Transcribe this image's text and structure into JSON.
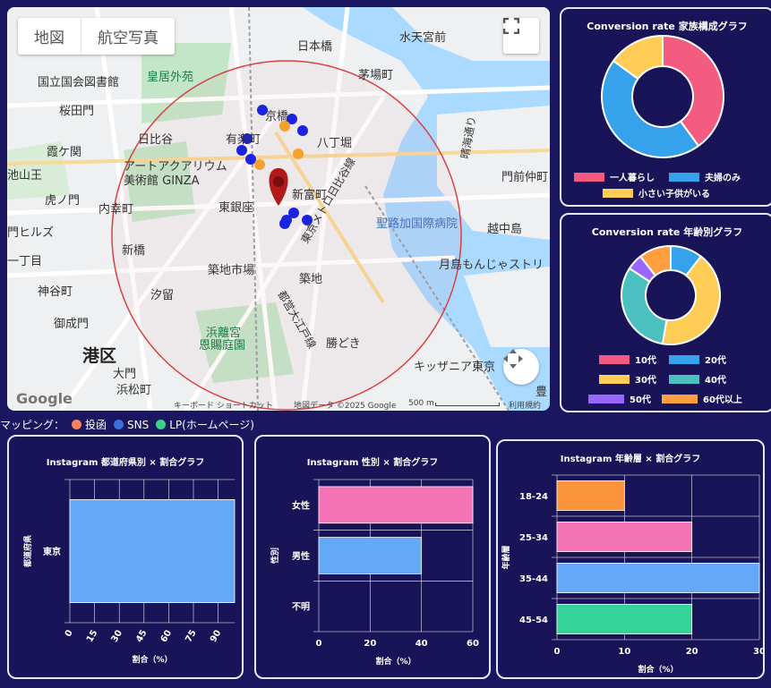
{
  "map": {
    "btn_map": "地図",
    "btn_satellite": "航空写真",
    "fullscreen_icon": "fullscreen-icon",
    "gesture_icon": "move-icon",
    "google_logo": "Google",
    "footer": {
      "shortcuts": "キーボード ショートカット",
      "data": "地図データ ©2025 Google",
      "scale": "500 m",
      "terms": "利用規約"
    },
    "places": [
      {
        "name": "日本橋"
      },
      {
        "name": "水天宮前"
      },
      {
        "name": "皇居外苑"
      },
      {
        "name": "茅場町"
      },
      {
        "name": "国立国会図書館"
      },
      {
        "name": "桜田門"
      },
      {
        "name": "京橋"
      },
      {
        "name": "八丁堀"
      },
      {
        "name": "日比谷"
      },
      {
        "name": "有楽町"
      },
      {
        "name": "霞ケ関"
      },
      {
        "name": "アートアクアリウム"
      },
      {
        "name": "美術館 GINZA"
      },
      {
        "name": "門前仲町"
      },
      {
        "name": "池山王"
      },
      {
        "name": "新富町"
      },
      {
        "name": "虎ノ門"
      },
      {
        "name": "内幸町"
      },
      {
        "name": "東銀座"
      },
      {
        "name": "聖路加国際病院"
      },
      {
        "name": "越中島"
      },
      {
        "name": "門ヒルズ"
      },
      {
        "name": "新橋"
      },
      {
        "name": "月島もんじゃストリ"
      },
      {
        "name": "一丁目"
      },
      {
        "name": "築地市場"
      },
      {
        "name": "神谷町"
      },
      {
        "name": "築地"
      },
      {
        "name": "汐留"
      },
      {
        "name": "御成門"
      },
      {
        "name": "浜離宮"
      },
      {
        "name": "恩賜庭園"
      },
      {
        "name": "港区"
      },
      {
        "name": "勝どき"
      },
      {
        "name": "大門"
      },
      {
        "name": "キッザニア東京"
      },
      {
        "name": "浜松町"
      },
      {
        "name": "豊"
      },
      {
        "name": "晴海通り"
      },
      {
        "name": "東京メトロ日比谷線"
      },
      {
        "name": "都営大江戸線"
      }
    ]
  },
  "mapping_legend": {
    "label": "マッピング：",
    "items": [
      {
        "name": "投函",
        "color": "#f4845f"
      },
      {
        "name": "SNS",
        "color": "#3b6fe0"
      },
      {
        "name": "LP(ホームページ)",
        "color": "#3dd08a"
      }
    ]
  },
  "family_chart": {
    "title": "Conversion rate 家族構成グラフ",
    "chart_data": {
      "type": "pie",
      "categories": [
        "一人暮らし",
        "夫婦のみ",
        "小さい子供がいる"
      ],
      "values": [
        40,
        45,
        15
      ],
      "colors": [
        "#f45b80",
        "#36a2eb",
        "#ffcd56"
      ]
    }
  },
  "age_chart": {
    "title": "Conversion rate 年齢別グラフ",
    "chart_data": {
      "type": "pie",
      "categories": [
        "10代",
        "20代",
        "30代",
        "40代",
        "50代",
        "60代以上"
      ],
      "values": [
        0,
        10,
        40,
        30,
        5,
        10
      ],
      "colors": [
        "#f45b80",
        "#36a2eb",
        "#ffcd56",
        "#4bc0c0",
        "#9966ff",
        "#ff9f40"
      ]
    }
  },
  "pref_chart": {
    "title": "Instagram 都道府県別 × 割合グラフ",
    "chart_data": {
      "type": "bar",
      "orientation": "horizontal",
      "categories": [
        "東京"
      ],
      "values": [
        100
      ],
      "xlabel": "割合（%）",
      "ylabel": "都道府県",
      "xticks": [
        "0",
        "15",
        "30",
        "45",
        "60",
        "75",
        "90"
      ],
      "xlim": [
        0,
        100
      ],
      "color": "#64a8f8"
    }
  },
  "gender_chart": {
    "title": "Instagram 性別 × 割合グラフ",
    "chart_data": {
      "type": "bar",
      "orientation": "horizontal",
      "categories": [
        "女性",
        "男性",
        "不明"
      ],
      "values": [
        60,
        40,
        0
      ],
      "xlabel": "割合（%）",
      "ylabel": "性別",
      "xticks": [
        "0",
        "20",
        "40",
        "60"
      ],
      "xlim": [
        0,
        60
      ],
      "colors": [
        "#f472b6",
        "#64a8f8",
        "#64a8f8"
      ]
    }
  },
  "agegroup_chart": {
    "title": "Instagram 年齢層 × 割合グラフ",
    "chart_data": {
      "type": "bar",
      "orientation": "horizontal",
      "categories": [
        "18-24",
        "25-34",
        "35-44",
        "45-54"
      ],
      "values": [
        10,
        20,
        30,
        20
      ],
      "xlabel": "割合（%）",
      "ylabel": "年齢層",
      "xticks": [
        "0",
        "10",
        "20",
        "30"
      ],
      "xlim": [
        0,
        30
      ],
      "colors": [
        "#fb923c",
        "#f472b6",
        "#64a8f8",
        "#34d399"
      ]
    }
  }
}
